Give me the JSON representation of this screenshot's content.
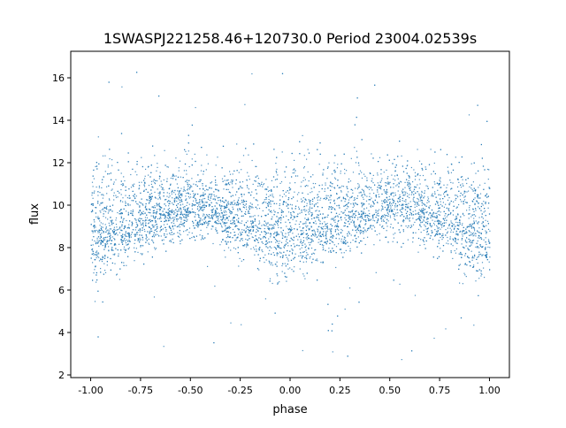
{
  "chart_data": {
    "type": "scatter",
    "title": "1SWASPJ221258.46+120730.0 Period 23004.02539s",
    "xlabel": "phase",
    "ylabel": "flux",
    "xlim": [
      -1.1,
      1.1
    ],
    "ylim": [
      1.875,
      17.25
    ],
    "xticks": [
      "-1.00",
      "-0.75",
      "-0.50",
      "-0.25",
      "0.00",
      "0.25",
      "0.50",
      "0.75",
      "1.00"
    ],
    "xtick_values": [
      -1.0,
      -0.75,
      -0.5,
      -0.25,
      0.0,
      0.25,
      0.5,
      0.75,
      1.0
    ],
    "yticks": [
      "2",
      "4",
      "6",
      "8",
      "10",
      "12",
      "14",
      "16"
    ],
    "ytick_values": [
      2,
      4,
      6,
      8,
      10,
      12,
      14,
      16
    ],
    "grid": false,
    "color": "#1f77b4",
    "binned_trend": {
      "phase": [
        -1.0,
        -0.875,
        -0.75,
        -0.625,
        -0.5,
        -0.375,
        -0.25,
        -0.125,
        0.0,
        0.125,
        0.25,
        0.375,
        0.5,
        0.625,
        0.75,
        0.875,
        1.0
      ],
      "median_flux": [
        8.6,
        9.0,
        9.4,
        9.8,
        10.0,
        9.8,
        9.4,
        9.0,
        8.6,
        9.0,
        9.4,
        9.8,
        10.0,
        9.8,
        9.4,
        9.0,
        8.6
      ],
      "lower_envelope": [
        6.0,
        6.8,
        7.6,
        8.2,
        8.4,
        8.2,
        7.6,
        6.8,
        6.0,
        6.8,
        7.6,
        8.2,
        8.4,
        8.2,
        7.6,
        6.8,
        6.0
      ],
      "upper_envelope": [
        12.2,
        12.2,
        12.2,
        12.2,
        12.2,
        12.2,
        12.2,
        12.2,
        12.2,
        12.2,
        12.2,
        12.2,
        12.2,
        12.2,
        12.2,
        12.2,
        12.2
      ]
    },
    "outlier_flux_range": [
      2.5,
      16.6
    ]
  }
}
